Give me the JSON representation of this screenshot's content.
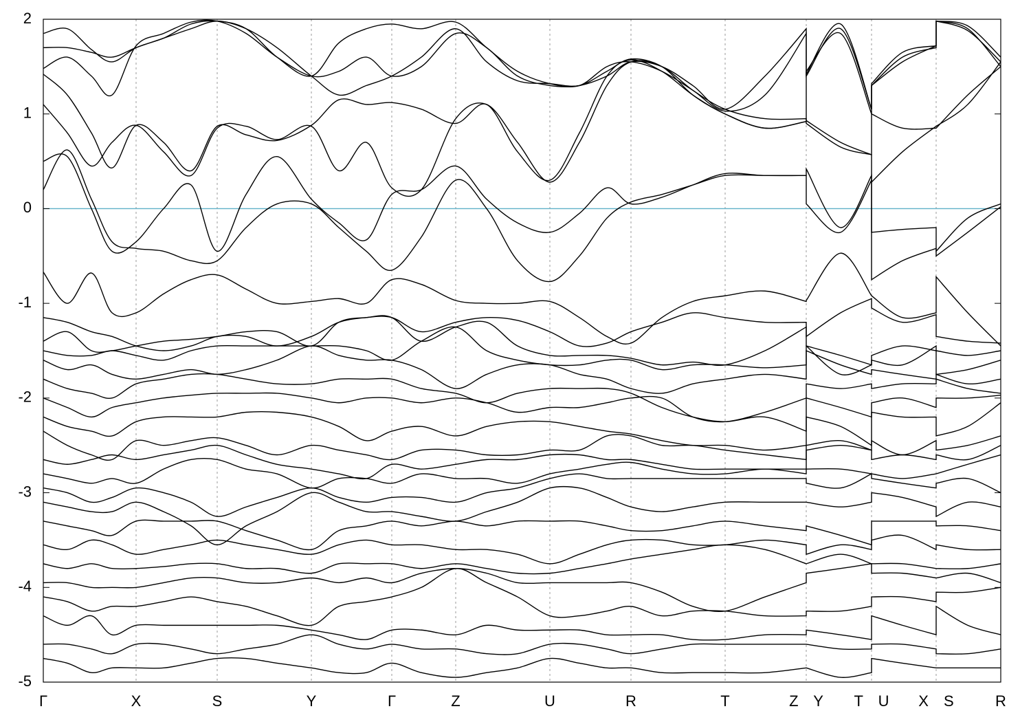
{
  "chart_data": {
    "type": "line",
    "color": "#000000",
    "xgrid": true,
    "reference_line": {
      "y": 0,
      "color": "#5fb0c8"
    },
    "xlim": [
      0,
      13.93
    ],
    "ylim": [
      -5,
      2
    ],
    "yticks": [
      -5,
      -4,
      -3,
      -2,
      -1,
      0,
      1,
      2
    ],
    "xticks": [
      {
        "value": 0,
        "label": "Γ"
      },
      {
        "value": 1.35,
        "label": "X"
      },
      {
        "value": 2.53,
        "label": "S"
      },
      {
        "value": 3.9,
        "label": "Y"
      },
      {
        "value": 5.07,
        "label": "Γ"
      },
      {
        "value": 6.0,
        "label": "Z"
      },
      {
        "value": 7.37,
        "label": "U"
      },
      {
        "value": 8.55,
        "label": "R"
      },
      {
        "value": 9.92,
        "label": "T"
      },
      {
        "value": 11.1,
        "label": "Z Y"
      },
      {
        "value": 12.05,
        "label": "T U"
      },
      {
        "value": 12.99,
        "label": "X S"
      },
      {
        "value": 13.93,
        "label": "R"
      }
    ],
    "x": [
      0,
      0.35,
      0.7,
      1.0,
      1.35,
      1.75,
      2.15,
      2.53,
      2.95,
      3.4,
      3.9,
      4.3,
      4.7,
      5.07,
      5.5,
      6.0,
      6.45,
      6.9,
      7.37,
      7.8,
      8.2,
      8.55,
      9.0,
      9.45,
      9.92,
      10.5,
      11.1,
      11.1,
      11.6,
      12.05,
      12.05,
      12.5,
      12.99,
      12.99,
      13.45,
      13.93
    ],
    "series": [
      {
        "values": [
          -0.67,
          -1.0,
          -0.68,
          -1.1,
          -1.1,
          -0.9,
          -0.75,
          -0.7,
          -0.85,
          -1.0,
          -0.98,
          -0.95,
          -1.0,
          -0.75,
          -0.8,
          -0.97,
          -1.0,
          -1.0,
          -0.98,
          -1.15,
          -1.35,
          -1.42,
          -1.15,
          -0.98,
          -0.92,
          -0.87,
          -0.98,
          -0.97,
          -0.47,
          -0.92,
          -0.92,
          -1.15,
          -1.1,
          -0.72,
          -1.1,
          -1.45
        ]
      },
      {
        "values": [
          0.2,
          0.62,
          0.1,
          -0.35,
          -0.42,
          -0.45,
          -0.55,
          -0.55,
          -0.2,
          0.05,
          0.05,
          -0.2,
          -0.45,
          -0.65,
          -0.3,
          0.3,
          0.0,
          -0.55,
          -0.77,
          -0.5,
          -0.1,
          0.07,
          0.15,
          0.25,
          0.35,
          0.35,
          0.35,
          0.05,
          -0.25,
          0.3,
          -0.25,
          -0.22,
          -0.2,
          -0.5,
          -0.25,
          0.02
        ]
      },
      {
        "values": [
          0.5,
          0.55,
          0.0,
          -0.45,
          -0.35,
          0.0,
          0.25,
          -0.45,
          0.15,
          0.55,
          0.1,
          -0.15,
          -0.33,
          0.15,
          0.2,
          0.45,
          0.1,
          -0.15,
          -0.25,
          -0.05,
          0.22,
          0.05,
          0.12,
          0.25,
          0.37,
          0.35,
          0.35,
          0.42,
          -0.2,
          0.35,
          -0.75,
          -0.55,
          -0.42,
          -0.45,
          -0.1,
          0.05
        ]
      },
      {
        "values": [
          1.1,
          0.8,
          0.45,
          0.7,
          0.88,
          0.6,
          0.35,
          0.85,
          0.87,
          0.73,
          0.87,
          0.4,
          0.7,
          0.22,
          0.2,
          0.95,
          1.1,
          0.7,
          0.28,
          0.7,
          1.3,
          1.55,
          1.5,
          1.25,
          1.05,
          0.95,
          0.95,
          0.93,
          0.7,
          0.57,
          0.28,
          0.6,
          0.87,
          0.87,
          1.1,
          1.55
        ]
      },
      {
        "values": [
          1.42,
          1.2,
          0.8,
          0.43,
          0.88,
          0.7,
          0.4,
          0.87,
          0.78,
          0.72,
          0.88,
          1.15,
          1.1,
          1.12,
          1.05,
          0.9,
          1.1,
          0.6,
          0.3,
          0.8,
          1.4,
          1.57,
          1.45,
          1.2,
          1.0,
          0.85,
          0.92,
          0.9,
          0.65,
          0.57,
          1.0,
          0.85,
          0.85,
          0.85,
          1.2,
          1.5
        ]
      },
      {
        "values": [
          1.48,
          1.6,
          1.4,
          1.2,
          1.72,
          1.85,
          1.97,
          1.98,
          1.85,
          1.6,
          1.4,
          1.45,
          1.6,
          1.4,
          1.5,
          1.85,
          1.7,
          1.4,
          1.3,
          1.3,
          1.4,
          1.55,
          1.5,
          1.3,
          1.05,
          1.4,
          1.9,
          1.4,
          1.9,
          1.05,
          1.3,
          1.6,
          1.7,
          1.98,
          1.9,
          1.5
        ]
      },
      {
        "values": [
          1.7,
          1.7,
          1.65,
          1.6,
          1.7,
          1.8,
          1.9,
          1.98,
          1.9,
          1.7,
          1.4,
          1.2,
          1.3,
          1.4,
          1.6,
          1.9,
          1.55,
          1.35,
          1.32,
          1.3,
          1.45,
          1.58,
          1.5,
          1.2,
          1.0,
          0.85,
          0.92,
          1.45,
          1.85,
          1.0,
          1.3,
          1.55,
          1.72,
          1.98,
          1.88,
          1.55
        ]
      },
      {
        "values": [
          1.85,
          1.9,
          1.68,
          1.55,
          1.7,
          1.8,
          1.95,
          1.98,
          1.9,
          1.6,
          1.4,
          1.75,
          1.9,
          1.95,
          1.9,
          1.97,
          1.7,
          1.45,
          1.32,
          1.3,
          1.5,
          1.55,
          1.45,
          1.25,
          1.03,
          1.2,
          1.85,
          1.42,
          1.95,
          1.05,
          1.32,
          1.65,
          1.72,
          1.98,
          1.93,
          1.6
        ]
      },
      {
        "values": [
          -1.15,
          -1.2,
          -1.3,
          -1.35,
          -1.45,
          -1.5,
          -1.45,
          -1.35,
          -1.35,
          -1.45,
          -1.35,
          -1.2,
          -1.15,
          -1.15,
          -1.3,
          -1.2,
          -1.15,
          -1.18,
          -1.3,
          -1.45,
          -1.42,
          -1.3,
          -1.2,
          -1.1,
          -1.15,
          -1.2,
          -1.2,
          -1.35,
          -1.1,
          -0.95,
          -1.05,
          -1.2,
          -1.12,
          -1.35,
          -1.4,
          -1.42
        ]
      },
      {
        "values": [
          -1.4,
          -1.3,
          -1.5,
          -1.5,
          -1.45,
          -1.4,
          -1.38,
          -1.35,
          -1.3,
          -1.3,
          -1.45,
          -1.2,
          -1.15,
          -1.15,
          -1.4,
          -1.25,
          -1.2,
          -1.45,
          -1.55,
          -1.55,
          -1.55,
          -1.58,
          -1.65,
          -1.62,
          -1.65,
          -1.5,
          -1.25,
          -1.45,
          -1.75,
          -1.65,
          -1.55,
          -1.45,
          -1.5,
          -1.5,
          -1.55,
          -1.5
        ]
      },
      {
        "values": [
          -1.5,
          -1.55,
          -1.55,
          -1.5,
          -1.55,
          -1.6,
          -1.5,
          -1.45,
          -1.45,
          -1.45,
          -1.45,
          -1.45,
          -1.5,
          -1.6,
          -1.4,
          -1.25,
          -1.5,
          -1.6,
          -1.65,
          -1.65,
          -1.6,
          -1.6,
          -1.7,
          -1.65,
          -1.65,
          -1.68,
          -1.65,
          -1.45,
          -1.55,
          -1.65,
          -1.6,
          -1.65,
          -1.45,
          -1.75,
          -1.7,
          -1.6
        ]
      },
      {
        "values": [
          -1.6,
          -1.7,
          -1.65,
          -1.75,
          -1.8,
          -1.75,
          -1.7,
          -1.75,
          -1.7,
          -1.6,
          -1.45,
          -1.55,
          -1.6,
          -1.6,
          -1.7,
          -1.9,
          -1.75,
          -1.65,
          -1.65,
          -1.75,
          -1.8,
          -1.9,
          -1.95,
          -1.85,
          -1.8,
          -1.75,
          -1.8,
          -1.5,
          -1.65,
          -1.75,
          -1.7,
          -1.75,
          -1.8,
          -1.75,
          -1.85,
          -1.8
        ]
      },
      {
        "values": [
          -1.8,
          -1.9,
          -1.95,
          -2.0,
          -1.85,
          -1.8,
          -1.75,
          -1.75,
          -1.8,
          -1.85,
          -1.85,
          -1.8,
          -1.8,
          -1.8,
          -1.9,
          -1.95,
          -2.05,
          -1.95,
          -1.9,
          -1.9,
          -1.9,
          -1.95,
          -2.1,
          -2.2,
          -2.25,
          -2.2,
          -2.35,
          -1.85,
          -1.9,
          -1.85,
          -1.9,
          -1.85,
          -1.85,
          -1.8,
          -1.9,
          -1.95
        ]
      },
      {
        "values": [
          -2.0,
          -2.1,
          -2.2,
          -2.1,
          -2.05,
          -2.0,
          -1.97,
          -1.95,
          -1.95,
          -1.95,
          -2.0,
          -2.05,
          -2.0,
          -2.0,
          -2.05,
          -2.0,
          -2.05,
          -2.15,
          -2.1,
          -2.1,
          -2.05,
          -2.0,
          -2.0,
          -2.2,
          -2.25,
          -2.15,
          -2.0,
          -2.0,
          -2.1,
          -2.2,
          -2.05,
          -2.0,
          -2.1,
          -2.0,
          -2.0,
          -1.97
        ]
      },
      {
        "values": [
          -2.2,
          -2.3,
          -2.35,
          -2.4,
          -2.25,
          -2.2,
          -2.2,
          -2.2,
          -2.15,
          -2.15,
          -2.2,
          -2.3,
          -2.45,
          -2.35,
          -2.3,
          -2.4,
          -2.3,
          -2.25,
          -2.25,
          -2.3,
          -2.35,
          -2.38,
          -2.45,
          -2.5,
          -2.5,
          -2.55,
          -2.5,
          -2.2,
          -2.3,
          -2.5,
          -2.15,
          -2.2,
          -2.2,
          -2.4,
          -2.3,
          -2.05
        ]
      },
      {
        "values": [
          -2.35,
          -2.5,
          -2.6,
          -2.65,
          -2.45,
          -2.5,
          -2.45,
          -2.42,
          -2.5,
          -2.6,
          -2.5,
          -2.55,
          -2.6,
          -2.65,
          -2.55,
          -2.55,
          -2.6,
          -2.6,
          -2.55,
          -2.55,
          -2.4,
          -2.4,
          -2.5,
          -2.5,
          -2.55,
          -2.6,
          -2.65,
          -2.5,
          -2.45,
          -2.55,
          -2.45,
          -2.6,
          -2.45,
          -2.55,
          -2.5,
          -2.4
        ]
      },
      {
        "values": [
          -2.65,
          -2.7,
          -2.65,
          -2.6,
          -2.65,
          -2.6,
          -2.55,
          -2.5,
          -2.6,
          -2.7,
          -2.75,
          -2.8,
          -2.85,
          -2.7,
          -2.75,
          -2.7,
          -2.65,
          -2.65,
          -2.6,
          -2.6,
          -2.65,
          -2.65,
          -2.7,
          -2.75,
          -2.75,
          -2.75,
          -2.75,
          -2.55,
          -2.5,
          -2.55,
          -2.65,
          -2.6,
          -2.65,
          -2.6,
          -2.65,
          -2.5
        ]
      },
      {
        "values": [
          -2.8,
          -2.85,
          -2.9,
          -2.85,
          -2.9,
          -2.75,
          -2.65,
          -2.65,
          -2.75,
          -2.8,
          -2.95,
          -2.85,
          -2.85,
          -2.9,
          -2.8,
          -2.85,
          -2.85,
          -2.9,
          -2.8,
          -2.75,
          -2.7,
          -2.68,
          -2.75,
          -2.8,
          -2.8,
          -2.75,
          -2.8,
          -2.75,
          -2.75,
          -2.8,
          -2.8,
          -2.85,
          -2.8,
          -2.8,
          -2.7,
          -2.6
        ]
      },
      {
        "values": [
          -2.95,
          -3.0,
          -3.1,
          -3.05,
          -2.95,
          -3.0,
          -3.1,
          -3.25,
          -3.15,
          -3.05,
          -2.95,
          -3.05,
          -3.1,
          -3.05,
          -3.05,
          -3.1,
          -3.0,
          -2.95,
          -2.85,
          -2.8,
          -2.85,
          -2.85,
          -2.85,
          -2.85,
          -2.85,
          -2.85,
          -2.85,
          -2.9,
          -2.95,
          -2.8,
          -2.85,
          -2.9,
          -2.95,
          -2.9,
          -2.85,
          -3.0
        ]
      },
      {
        "values": [
          -3.1,
          -3.15,
          -3.2,
          -3.2,
          -3.1,
          -3.2,
          -3.35,
          -3.55,
          -3.35,
          -3.2,
          -3.0,
          -3.1,
          -3.2,
          -3.2,
          -3.25,
          -3.3,
          -3.2,
          -3.1,
          -2.95,
          -2.95,
          -3.05,
          -3.15,
          -3.2,
          -3.15,
          -3.1,
          -3.1,
          -3.1,
          -3.1,
          -3.15,
          -3.1,
          -3.0,
          -3.05,
          -3.15,
          -3.25,
          -3.1,
          -3.15
        ]
      },
      {
        "values": [
          -3.3,
          -3.35,
          -3.4,
          -3.45,
          -3.3,
          -3.3,
          -3.3,
          -3.3,
          -3.4,
          -3.5,
          -3.6,
          -3.4,
          -3.35,
          -3.3,
          -3.35,
          -3.3,
          -3.35,
          -3.3,
          -3.3,
          -3.3,
          -3.35,
          -3.4,
          -3.4,
          -3.35,
          -3.3,
          -3.35,
          -3.4,
          -3.35,
          -3.45,
          -3.55,
          -3.3,
          -3.3,
          -3.3,
          -3.35,
          -3.35,
          -3.4
        ]
      },
      {
        "values": [
          -3.55,
          -3.6,
          -3.5,
          -3.55,
          -3.65,
          -3.6,
          -3.55,
          -3.5,
          -3.55,
          -3.6,
          -3.65,
          -3.55,
          -3.5,
          -3.55,
          -3.55,
          -3.6,
          -3.6,
          -3.65,
          -3.75,
          -3.65,
          -3.55,
          -3.5,
          -3.5,
          -3.55,
          -3.55,
          -3.5,
          -3.55,
          -3.65,
          -3.55,
          -3.6,
          -3.5,
          -3.45,
          -3.6,
          -3.55,
          -3.6,
          -3.6
        ]
      },
      {
        "values": [
          -3.75,
          -3.8,
          -3.75,
          -3.8,
          -3.8,
          -3.78,
          -3.75,
          -3.75,
          -3.8,
          -3.8,
          -3.85,
          -3.75,
          -3.75,
          -3.75,
          -3.8,
          -3.75,
          -3.8,
          -3.85,
          -3.85,
          -3.8,
          -3.75,
          -3.7,
          -3.65,
          -3.6,
          -3.55,
          -3.6,
          -3.75,
          -3.75,
          -3.65,
          -3.75,
          -3.75,
          -3.75,
          -3.8,
          -3.8,
          -3.8,
          -3.75
        ]
      },
      {
        "values": [
          -3.95,
          -3.95,
          -4.0,
          -4.0,
          -4.0,
          -3.95,
          -3.9,
          -3.9,
          -3.95,
          -3.95,
          -3.9,
          -3.95,
          -3.9,
          -3.95,
          -3.85,
          -3.8,
          -3.85,
          -3.95,
          -3.95,
          -3.95,
          -3.95,
          -3.95,
          -4.05,
          -4.2,
          -4.25,
          -4.1,
          -3.95,
          -3.85,
          -3.8,
          -3.75,
          -3.85,
          -3.85,
          -3.9,
          -3.9,
          -3.85,
          -3.95
        ]
      },
      {
        "values": [
          -4.1,
          -4.15,
          -4.25,
          -4.2,
          -4.2,
          -4.15,
          -4.1,
          -4.15,
          -4.2,
          -4.3,
          -4.4,
          -4.2,
          -4.15,
          -4.1,
          -4.0,
          -3.8,
          -3.95,
          -4.1,
          -4.3,
          -4.3,
          -4.25,
          -4.2,
          -4.3,
          -4.25,
          -4.25,
          -4.3,
          -4.3,
          -4.25,
          -4.25,
          -4.2,
          -4.1,
          -4.1,
          -4.15,
          -4.05,
          -4.05,
          -4.0
        ]
      },
      {
        "values": [
          -4.3,
          -4.4,
          -4.3,
          -4.5,
          -4.4,
          -4.4,
          -4.4,
          -4.4,
          -4.4,
          -4.4,
          -4.45,
          -4.5,
          -4.55,
          -4.45,
          -4.45,
          -4.5,
          -4.4,
          -4.45,
          -4.45,
          -4.45,
          -4.5,
          -4.5,
          -4.5,
          -4.55,
          -4.55,
          -4.5,
          -4.5,
          -4.45,
          -4.5,
          -4.55,
          -4.3,
          -4.4,
          -4.5,
          -4.2,
          -4.4,
          -4.5
        ]
      },
      {
        "values": [
          -4.6,
          -4.6,
          -4.65,
          -4.7,
          -4.6,
          -4.6,
          -4.65,
          -4.7,
          -4.65,
          -4.6,
          -4.5,
          -4.6,
          -4.65,
          -4.6,
          -4.65,
          -4.65,
          -4.7,
          -4.7,
          -4.6,
          -4.6,
          -4.65,
          -4.7,
          -4.65,
          -4.6,
          -4.6,
          -4.6,
          -4.6,
          -4.6,
          -4.65,
          -4.65,
          -4.6,
          -4.6,
          -4.65,
          -4.7,
          -4.7,
          -4.65
        ]
      },
      {
        "values": [
          -4.75,
          -4.8,
          -4.9,
          -4.85,
          -4.85,
          -4.85,
          -4.8,
          -4.75,
          -4.75,
          -4.8,
          -4.85,
          -4.9,
          -4.9,
          -4.8,
          -4.9,
          -4.95,
          -4.9,
          -4.85,
          -4.75,
          -4.8,
          -4.85,
          -4.85,
          -4.9,
          -4.9,
          -4.9,
          -4.9,
          -4.85,
          -4.85,
          -4.95,
          -4.9,
          -4.75,
          -4.8,
          -4.85,
          -4.85,
          -4.85,
          -4.85
        ]
      }
    ]
  }
}
